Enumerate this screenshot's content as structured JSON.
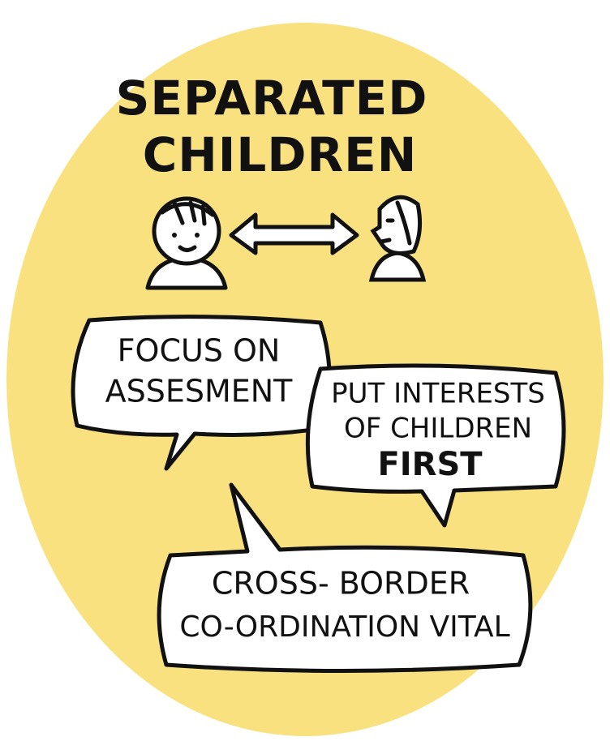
{
  "title": [
    "SEPARATED",
    "CHILDREN"
  ],
  "bubbles": [
    {
      "lines": [
        "FOCUS ON",
        "ASSESMENT"
      ]
    },
    {
      "lines": [
        "PUT INTERESTS",
        "OF CHILDREN",
        "FIRST"
      ]
    },
    {
      "lines": [
        "CROSS- BORDER",
        "CO-ORDINATION VITAL"
      ]
    }
  ]
}
